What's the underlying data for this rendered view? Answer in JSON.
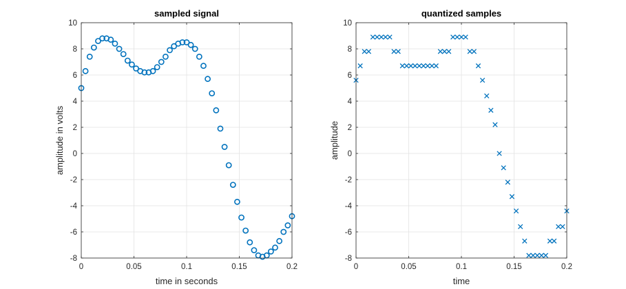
{
  "chart_data": [
    {
      "type": "scatter",
      "title": "sampled signal",
      "xlabel": "time in seconds",
      "ylabel": "amplitude in volts",
      "xlim": [
        0,
        0.2
      ],
      "ylim": [
        -8,
        10
      ],
      "grid": true,
      "marker": "circle",
      "color": "#0072BD",
      "xticks": [
        0,
        0.05,
        0.1,
        0.15,
        0.2
      ],
      "xticklabels": [
        "0",
        "0.05",
        "0.1",
        "0.15",
        "0.2"
      ],
      "yticks": [
        -8,
        -6,
        -4,
        -2,
        0,
        2,
        4,
        6,
        8,
        10
      ],
      "yticklabels": [
        "-8",
        "-6",
        "-4",
        "-2",
        "0",
        "2",
        "4",
        "6",
        "8",
        "10"
      ],
      "series": [
        {
          "x": [
            0,
            0.004,
            0.008,
            0.012,
            0.016,
            0.02,
            0.024,
            0.028,
            0.032,
            0.036,
            0.04,
            0.044,
            0.048,
            0.052,
            0.056,
            0.06,
            0.064,
            0.068,
            0.072,
            0.076,
            0.08,
            0.084,
            0.088,
            0.092,
            0.096,
            0.1,
            0.104,
            0.108,
            0.112,
            0.116,
            0.12,
            0.124,
            0.128,
            0.132,
            0.136,
            0.14,
            0.144,
            0.148,
            0.152,
            0.156,
            0.16,
            0.164,
            0.168,
            0.172,
            0.176,
            0.18,
            0.184,
            0.188,
            0.192,
            0.196,
            0.2
          ],
          "y": [
            5.0,
            6.3,
            7.4,
            8.1,
            8.6,
            8.8,
            8.8,
            8.7,
            8.4,
            8.0,
            7.6,
            7.1,
            6.8,
            6.5,
            6.3,
            6.2,
            6.2,
            6.3,
            6.6,
            7.0,
            7.4,
            7.9,
            8.2,
            8.4,
            8.5,
            8.5,
            8.3,
            8.0,
            7.4,
            6.7,
            5.7,
            4.6,
            3.3,
            1.9,
            0.5,
            -0.9,
            -2.4,
            -3.7,
            -4.9,
            -5.9,
            -6.8,
            -7.4,
            -7.8,
            -7.9,
            -7.8,
            -7.5,
            -7.2,
            -6.7,
            -6.0,
            -5.5,
            -4.8
          ]
        }
      ]
    },
    {
      "type": "scatter",
      "title": "quantized samples",
      "xlabel": "time",
      "ylabel": "amplitude",
      "xlim": [
        0,
        0.2
      ],
      "ylim": [
        -8,
        10
      ],
      "grid": true,
      "marker": "x",
      "color": "#0072BD",
      "xticks": [
        0,
        0.05,
        0.1,
        0.15,
        0.2
      ],
      "xticklabels": [
        "0",
        "0.05",
        "0.1",
        "0.15",
        "0.2"
      ],
      "yticks": [
        -8,
        -6,
        -4,
        -2,
        0,
        2,
        4,
        6,
        8,
        10
      ],
      "yticklabels": [
        "-8",
        "-6",
        "-4",
        "-2",
        "0",
        "2",
        "4",
        "6",
        "8",
        "10"
      ],
      "series": [
        {
          "x": [
            0,
            0.004,
            0.008,
            0.012,
            0.016,
            0.02,
            0.024,
            0.028,
            0.032,
            0.036,
            0.04,
            0.044,
            0.048,
            0.052,
            0.056,
            0.06,
            0.064,
            0.068,
            0.072,
            0.076,
            0.08,
            0.084,
            0.088,
            0.092,
            0.096,
            0.1,
            0.104,
            0.108,
            0.112,
            0.116,
            0.12,
            0.124,
            0.128,
            0.132,
            0.136,
            0.14,
            0.144,
            0.148,
            0.152,
            0.156,
            0.16,
            0.164,
            0.168,
            0.172,
            0.176,
            0.18,
            0.184,
            0.188,
            0.192,
            0.196,
            0.2
          ],
          "y": [
            5.6,
            6.7,
            7.8,
            7.8,
            8.9,
            8.9,
            8.9,
            8.9,
            8.9,
            7.8,
            7.8,
            6.7,
            6.7,
            6.7,
            6.7,
            6.7,
            6.7,
            6.7,
            6.7,
            6.7,
            7.8,
            7.8,
            7.8,
            8.9,
            8.9,
            8.9,
            8.9,
            7.8,
            7.8,
            6.7,
            5.6,
            4.4,
            3.3,
            2.2,
            0.0,
            -1.1,
            -2.2,
            -3.3,
            -4.4,
            -5.6,
            -6.7,
            -7.8,
            -7.8,
            -7.8,
            -7.8,
            -7.8,
            -6.7,
            -6.7,
            -5.6,
            -5.6,
            -4.4
          ]
        }
      ]
    }
  ]
}
